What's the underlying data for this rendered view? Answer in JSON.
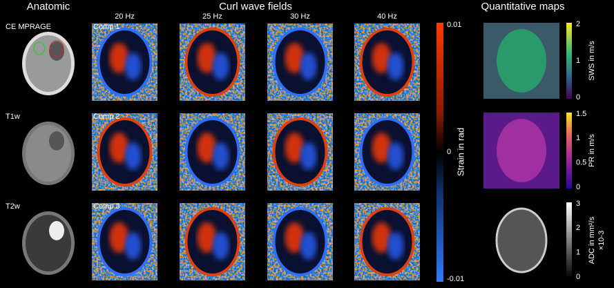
{
  "sections": {
    "anatomic": "Anatomic",
    "curl": "Curl wave fields",
    "quant": "Quantitative maps"
  },
  "frequencies": [
    "20 Hz",
    "25 Hz",
    "30 Hz",
    "40 Hz"
  ],
  "anatomic_rows": [
    "CE MPRAGE",
    "T1w",
    "T2w"
  ],
  "components": [
    "Comp 1",
    "Comp 2",
    "Comp 3"
  ],
  "strain_colorbar": {
    "label": "Strain in rad",
    "ticks": [
      "0.01",
      "0",
      "-0.01"
    ]
  },
  "quant_maps": [
    {
      "label": "SWS in m/s",
      "ticks": [
        "2",
        "1",
        "0"
      ]
    },
    {
      "label": "PR in m/s",
      "ticks": [
        "1.5",
        "1",
        "0.5",
        "0"
      ]
    },
    {
      "label": "ADC in mm²/s",
      "sublabel": "×10-3",
      "ticks": [
        "3",
        "2",
        "1",
        "0"
      ]
    }
  ]
}
